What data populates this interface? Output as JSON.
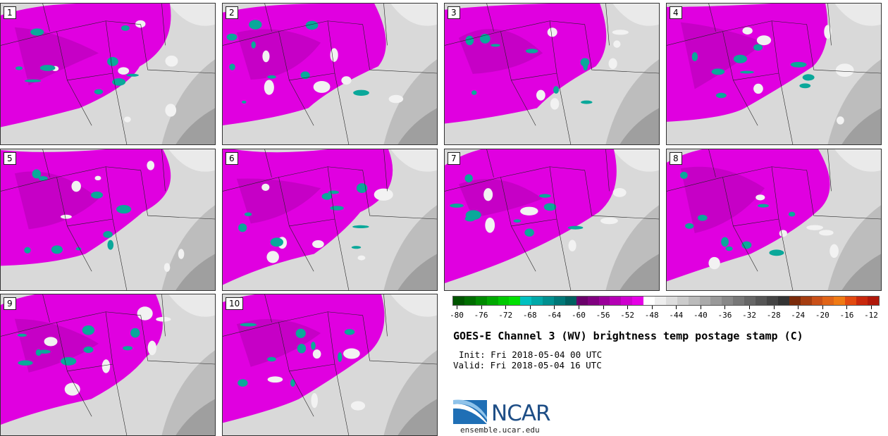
{
  "panels": [
    {
      "label": "1"
    },
    {
      "label": "2"
    },
    {
      "label": "3"
    },
    {
      "label": "4"
    },
    {
      "label": "5"
    },
    {
      "label": "6"
    },
    {
      "label": "7"
    },
    {
      "label": "8"
    },
    {
      "label": "9"
    },
    {
      "label": "10"
    }
  ],
  "colorbar": {
    "ticks": [
      "-80",
      "-76",
      "-72",
      "-68",
      "-64",
      "-60",
      "-56",
      "-52",
      "-48",
      "-44",
      "-40",
      "-36",
      "-32",
      "-28",
      "-24",
      "-20",
      "-16",
      "-12"
    ],
    "colors": [
      "#005500",
      "#006d00",
      "#008a00",
      "#00a800",
      "#00c800",
      "#00e000",
      "#00c0c0",
      "#00a8a8",
      "#009090",
      "#007878",
      "#006060",
      "#6a006a",
      "#800080",
      "#9a009a",
      "#b400b4",
      "#ce00ce",
      "#e600e6",
      "#ffffff",
      "#eeeeee",
      "#dddddd",
      "#cccccc",
      "#bbbbbb",
      "#aaaaaa",
      "#999999",
      "#888888",
      "#777777",
      "#666666",
      "#555555",
      "#444444",
      "#333333",
      "#7a2a0a",
      "#a53d10",
      "#c95018",
      "#e06418",
      "#ef7a14",
      "#e24a10",
      "#c8280c",
      "#b0180a"
    ]
  },
  "title": "GOES-E Channel 3 (WV) brightness temp postage stamp (C)",
  "init": "Init: Fri 2018-05-04 00 UTC",
  "valid": "Valid: Fri 2018-05-04 16 UTC",
  "logo": {
    "name": "NCAR",
    "url": "ensemble.ucar.edu"
  },
  "colors": {
    "magenta": "#e600e6",
    "teal": "#0aa89a",
    "gray": "#cfcfcf"
  }
}
